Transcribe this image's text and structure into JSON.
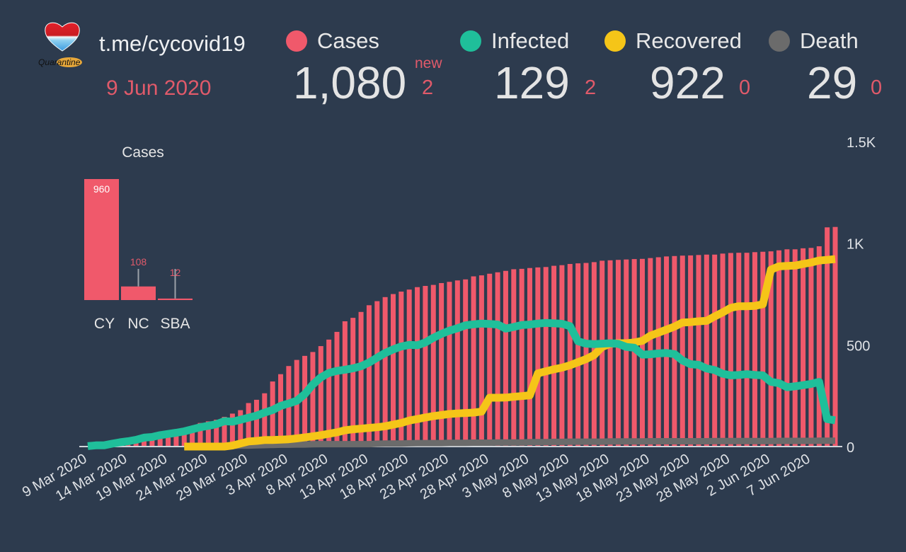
{
  "header": {
    "link": "t.me/cycovid19",
    "date": "9 Jun 2020",
    "logo_icon": "quarantine-heart-logo-icon",
    "logo_text": "Quarantine"
  },
  "stats": {
    "new_label": "new",
    "items": [
      {
        "label": "Cases",
        "value": "1,080",
        "delta": "2",
        "color": "#f0596b"
      },
      {
        "label": "Infected",
        "value": "129",
        "delta": "2",
        "color": "#1fbf9a"
      },
      {
        "label": "Recovered",
        "value": "922",
        "delta": "0",
        "color": "#f5c518"
      },
      {
        "label": "Death",
        "value": "29",
        "delta": "0",
        "color": "#6b6b6b"
      }
    ]
  },
  "chart_data": [
    {
      "type": "bar",
      "title": "Cases",
      "categories": [
        "CY",
        "NC",
        "SBA"
      ],
      "values": [
        960,
        108,
        12
      ],
      "color": "#f0596b"
    },
    {
      "type": "bar+line",
      "title": "",
      "xlabel": "",
      "ylabel": "",
      "ylim": [
        0,
        1500
      ],
      "yticks": [
        0,
        500,
        1000,
        1500
      ],
      "ytick_labels": [
        "0",
        "500",
        "1K",
        "1.5K"
      ],
      "y_axis_side": "right",
      "grid": false,
      "start_date": "9 Mar 2020",
      "end_date": "9 Jun 2020",
      "xtick_labels": [
        "9 Mar 2020",
        "14 Mar 2020",
        "19 Mar 2020",
        "24 Mar 2020",
        "29 Mar 2020",
        "3 Apr 2020",
        "8 Apr 2020",
        "13 Apr 2020",
        "18 Apr 2020",
        "23 Apr 2020",
        "28 Apr 2020",
        "3 May 2020",
        "8 May 2020",
        "13 May 2020",
        "18 May 2020",
        "23 May 2020",
        "28 May 2020",
        "2 Jun 2020",
        "7 Jun 2020"
      ],
      "xtick_step_days": 5,
      "series": [
        {
          "name": "Cases",
          "kind": "bar",
          "color": "#f0596b",
          "values": [
            2,
            6,
            6,
            14,
            21,
            26,
            33,
            46,
            49,
            58,
            67,
            75,
            84,
            95,
            116,
            124,
            132,
            146,
            162,
            179,
            214,
            230,
            262,
            320,
            356,
            396,
            426,
            446,
            465,
            494,
            526,
            564,
            616,
            633,
            662,
            695,
            715,
            735,
            750,
            762,
            772,
            784,
            790,
            795,
            804,
            810,
            817,
            822,
            837,
            842,
            850,
            857,
            864,
            872,
            874,
            878,
            881,
            883,
            889,
            892,
            898,
            901,
            903,
            907,
            914,
            916,
            918,
            920,
            922,
            923,
            927,
            931,
            935,
            937,
            939,
            940,
            942,
            944,
            944,
            949,
            952,
            953,
            953,
            956,
            958,
            960,
            965,
            970,
            970,
            975,
            977,
            985,
            1078,
            1080
          ]
        },
        {
          "name": "Infected",
          "kind": "line",
          "color": "#1fbf9a",
          "values": [
            2,
            6,
            6,
            14,
            21,
            26,
            33,
            44,
            47,
            56,
            62,
            68,
            75,
            85,
            95,
            102,
            110,
            125,
            122,
            132,
            142,
            152,
            167,
            180,
            200,
            212,
            225,
            258,
            305,
            340,
            362,
            372,
            378,
            385,
            395,
            413,
            437,
            460,
            478,
            492,
            500,
            498,
            512,
            535,
            554,
            570,
            582,
            596,
            601,
            605,
            603,
            600,
            580,
            588,
            598,
            600,
            605,
            608,
            606,
            604,
            592,
            518,
            506,
            504,
            506,
            508,
            505,
            490,
            486,
            452,
            454,
            458,
            460,
            455,
            423,
            405,
            402,
            384,
            376,
            358,
            350,
            352,
            356,
            352,
            350,
            318,
            312,
            292,
            296,
            302,
            308,
            318,
            135,
            129
          ]
        },
        {
          "name": "Recovered",
          "kind": "line",
          "color": "#f5c518",
          "values": [
            0,
            0,
            0,
            0,
            0,
            0,
            0,
            0,
            0,
            0,
            0,
            0,
            0,
            0,
            0,
            0,
            0,
            0,
            5,
            15,
            25,
            28,
            32,
            32,
            34,
            36,
            40,
            45,
            50,
            56,
            63,
            70,
            80,
            85,
            88,
            92,
            95,
            100,
            108,
            116,
            128,
            135,
            143,
            150,
            155,
            160,
            163,
            165,
            167,
            172,
            240,
            240,
            241,
            245,
            248,
            252,
            360,
            370,
            380,
            388,
            400,
            415,
            430,
            450,
            490,
            505,
            508,
            508,
            512,
            520,
            545,
            560,
            575,
            590,
            610,
            612,
            616,
            618,
            640,
            660,
            682,
            690,
            690,
            692,
            700,
            870,
            886,
            888,
            890,
            898,
            905,
            915,
            918,
            922
          ]
        },
        {
          "name": "Death",
          "kind": "line",
          "color": "#6b6b6b",
          "values": [
            0,
            0,
            0,
            0,
            0,
            0,
            0,
            0,
            0,
            0,
            0,
            0,
            0,
            0,
            0,
            1,
            2,
            3,
            3,
            5,
            5,
            6,
            7,
            8,
            9,
            9,
            10,
            10,
            11,
            12,
            12,
            12,
            12,
            12,
            12,
            12,
            14,
            15,
            15,
            15,
            16,
            17,
            17,
            17,
            17,
            18,
            18,
            18,
            19,
            19,
            19,
            20,
            20,
            20,
            20,
            22,
            22,
            22,
            23,
            23,
            24,
            24,
            24,
            24,
            24,
            25,
            25,
            25,
            25,
            25,
            26,
            26,
            26,
            26,
            26,
            26,
            26,
            26,
            27,
            27,
            27,
            27,
            27,
            27,
            27,
            27,
            28,
            28,
            28,
            28,
            28,
            29,
            29,
            29
          ]
        }
      ]
    }
  ]
}
